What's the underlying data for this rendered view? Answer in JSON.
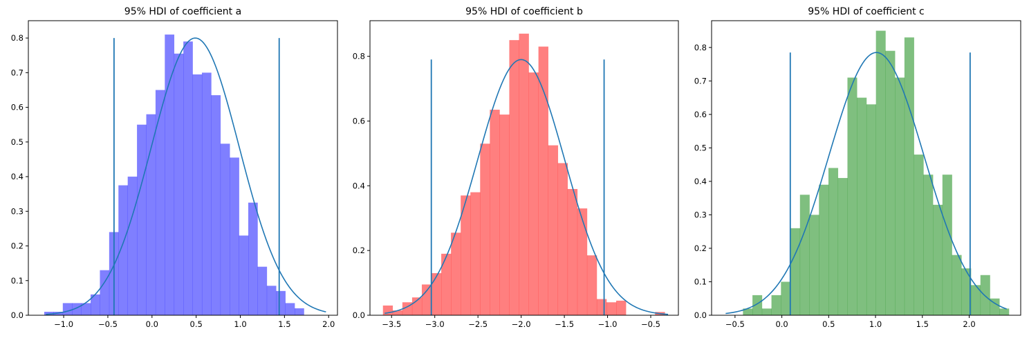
{
  "line_color": "#1f77b4",
  "chart_data": [
    {
      "type": "bar",
      "subtype": "histogram",
      "title": "95% HDI of coefficient a",
      "bar_color": "#0000ff",
      "bar_opacity": 0.5,
      "bin_start": -1.22,
      "bin_width": 0.105,
      "values": [
        0.01,
        0.01,
        0.035,
        0.035,
        0.035,
        0.06,
        0.13,
        0.24,
        0.375,
        0.4,
        0.55,
        0.58,
        0.65,
        0.81,
        0.755,
        0.79,
        0.695,
        0.7,
        0.635,
        0.495,
        0.455,
        0.23,
        0.325,
        0.14,
        0.085,
        0.07,
        0.035,
        0.02
      ],
      "hdi": [
        -0.43,
        1.44
      ],
      "hdi_line_height": 0.8,
      "normal_fit": {
        "mean": 0.49,
        "sd": 0.498,
        "x_range": [
          -1.2,
          1.97
        ]
      },
      "xlim": [
        -1.4,
        2.1
      ],
      "ylim": [
        0,
        0.85
      ],
      "xticks": [
        -1.0,
        -0.5,
        0.0,
        0.5,
        1.0,
        1.5,
        2.0
      ],
      "xtick_labels": [
        "−1.0",
        "−0.5",
        "0.0",
        "0.5",
        "1.0",
        "1.5",
        "2.0"
      ],
      "yticks": [
        0.0,
        0.1,
        0.2,
        0.3,
        0.4,
        0.5,
        0.6,
        0.7,
        0.8
      ],
      "ytick_labels": [
        "0.0",
        "0.1",
        "0.2",
        "0.3",
        "0.4",
        "0.5",
        "0.6",
        "0.7",
        "0.8"
      ],
      "xlabel": "",
      "ylabel": ""
    },
    {
      "type": "bar",
      "subtype": "histogram",
      "title": "95% HDI of coefficient b",
      "bar_color": "#ff0000",
      "bar_opacity": 0.5,
      "bin_start": -3.6,
      "bin_width": 0.1125,
      "values": [
        0.03,
        0.015,
        0.04,
        0.055,
        0.095,
        0.13,
        0.19,
        0.255,
        0.37,
        0.38,
        0.53,
        0.635,
        0.62,
        0.85,
        0.87,
        0.75,
        0.83,
        0.525,
        0.47,
        0.39,
        0.33,
        0.185,
        0.05,
        0.04,
        0.045,
        0.0,
        0.0,
        0.0,
        0.01
      ],
      "hdi": [
        -3.04,
        -1.04
      ],
      "hdi_line_height": 0.79,
      "normal_fit": {
        "mean": -2.0,
        "sd": 0.505,
        "x_range": [
          -3.58,
          -0.3
        ]
      },
      "xlim": [
        -3.75,
        -0.18
      ],
      "ylim": [
        0,
        0.91
      ],
      "xticks": [
        -3.5,
        -3.0,
        -2.5,
        -2.0,
        -1.5,
        -1.0,
        -0.5
      ],
      "xtick_labels": [
        "−3.5",
        "−3.0",
        "−2.5",
        "−2.0",
        "−1.5",
        "−1.0",
        "−0.5"
      ],
      "yticks": [
        0.0,
        0.2,
        0.4,
        0.6,
        0.8
      ],
      "ytick_labels": [
        "0.0",
        "0.2",
        "0.4",
        "0.6",
        "0.8"
      ],
      "xlabel": "",
      "ylabel": ""
    },
    {
      "type": "bar",
      "subtype": "histogram",
      "title": "95% HDI of coefficient c",
      "bar_color": "#008000",
      "bar_opacity": 0.5,
      "bin_start": -0.415,
      "bin_width": 0.1014,
      "values": [
        0.02,
        0.06,
        0.02,
        0.06,
        0.1,
        0.26,
        0.36,
        0.3,
        0.39,
        0.44,
        0.41,
        0.71,
        0.65,
        0.63,
        0.85,
        0.79,
        0.71,
        0.83,
        0.48,
        0.42,
        0.33,
        0.42,
        0.18,
        0.14,
        0.09,
        0.12,
        0.05,
        0.02
      ],
      "hdi": [
        0.09,
        2.01
      ],
      "hdi_line_height": 0.785,
      "normal_fit": {
        "mean": 1.01,
        "sd": 0.508,
        "x_range": [
          -0.6,
          2.4
        ]
      },
      "xlim": [
        -0.75,
        2.55
      ],
      "ylim": [
        0,
        0.88
      ],
      "xticks": [
        -0.5,
        0.0,
        0.5,
        1.0,
        1.5,
        2.0
      ],
      "xtick_labels": [
        "−0.5",
        "0.0",
        "0.5",
        "1.0",
        "1.5",
        "2.0"
      ],
      "yticks": [
        0.0,
        0.1,
        0.2,
        0.3,
        0.4,
        0.5,
        0.6,
        0.7,
        0.8
      ],
      "ytick_labels": [
        "0.0",
        "0.1",
        "0.2",
        "0.3",
        "0.4",
        "0.5",
        "0.6",
        "0.7",
        "0.8"
      ],
      "xlabel": "",
      "ylabel": ""
    }
  ]
}
